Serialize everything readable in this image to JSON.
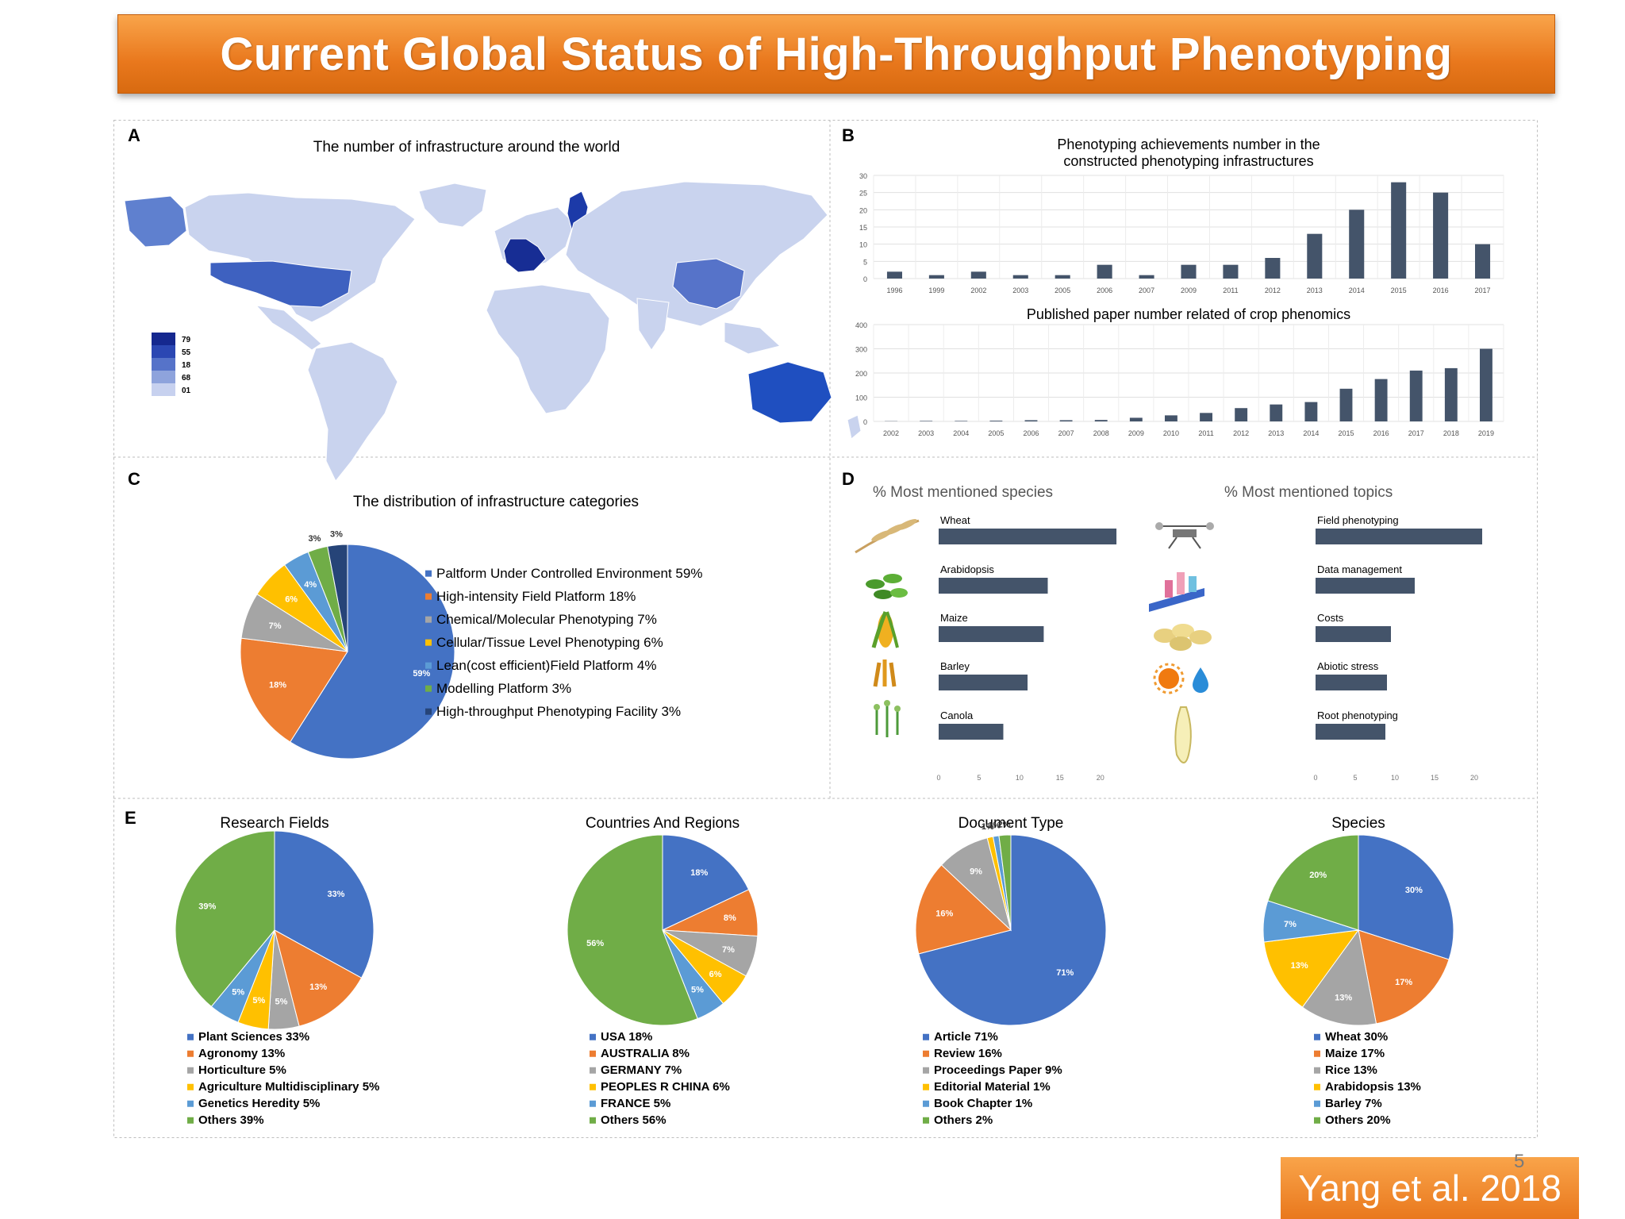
{
  "slide": {
    "title": "Current Global Status of High-Throughput Phenotyping",
    "citation": "Yang et al. 2018",
    "page_number": "5"
  },
  "panels": {
    "A": {
      "letter": "A",
      "title": "The number of infrastructure around the world",
      "legend_labels": [
        "79",
        "55",
        "18",
        "68",
        "01"
      ],
      "legend_colors": [
        "#15288f",
        "#2b47b3",
        "#5673c9",
        "#8ea3dc",
        "#c7d1ef"
      ]
    },
    "B": {
      "letter": "B"
    },
    "C": {
      "letter": "C"
    },
    "D": {
      "letter": "D",
      "species_title": "% Most mentioned species",
      "topics_title": "% Most mentioned topics",
      "species_icons": [
        "wheat-icon",
        "arabidopsis-icon",
        "maize-icon",
        "barley-icon",
        "canola-icon"
      ],
      "topic_icons": [
        "drone-icon",
        "data-management-icon",
        "coins-icon",
        "sun-water-icon",
        "root-icon"
      ]
    },
    "E": {
      "letter": "E"
    }
  },
  "colors": {
    "bar": "#44546a",
    "blue": "#4472c4",
    "orange": "#ed7d31",
    "gray": "#a5a5a5",
    "yellow": "#ffc000",
    "lightblue": "#5b9bd5",
    "green": "#70ad47",
    "navy": "#264478",
    "accent_orange": "#e9781d"
  },
  "chart_data": [
    {
      "id": "B1",
      "type": "bar",
      "title": "Phenotyping achievements number in the constructed phenotyping infrastructures",
      "categories": [
        "1996",
        "1999",
        "2002",
        "2003",
        "2005",
        "2006",
        "2007",
        "2009",
        "2011",
        "2012",
        "2013",
        "2014",
        "2015",
        "2016",
        "2017"
      ],
      "values": [
        2,
        1,
        2,
        1,
        1,
        4,
        1,
        4,
        4,
        6,
        13,
        20,
        28,
        25,
        10
      ],
      "yticks": [
        0,
        5,
        10,
        15,
        20,
        25,
        30
      ],
      "ylim": [
        0,
        30
      ],
      "grid": true
    },
    {
      "id": "B2",
      "type": "bar",
      "title": "Published paper number related of crop phenomics",
      "categories": [
        "2002",
        "2003",
        "2004",
        "2005",
        "2006",
        "2007",
        "2008",
        "2009",
        "2010",
        "2011",
        "2012",
        "2013",
        "2014",
        "2015",
        "2016",
        "2017",
        "2018",
        "2019"
      ],
      "values": [
        1,
        2,
        2,
        3,
        5,
        5,
        6,
        15,
        25,
        35,
        55,
        70,
        80,
        135,
        175,
        210,
        220,
        300
      ],
      "yticks": [
        0,
        100,
        200,
        300,
        400
      ],
      "ylim": [
        0,
        400
      ],
      "grid": true
    },
    {
      "id": "C",
      "type": "pie",
      "title": "The distribution of infrastructure categories",
      "slices": [
        {
          "label": "Paltform Under Controlled Environment 59%",
          "text": "59%",
          "value": 59,
          "color": "#4472c4"
        },
        {
          "label": "High-intensity Field Platform 18%",
          "text": "18%",
          "value": 18,
          "color": "#ed7d31"
        },
        {
          "label": "Chemical/Molecular Phenotyping 7%",
          "text": "7%",
          "value": 7,
          "color": "#a5a5a5"
        },
        {
          "label": "Cellular/Tissue Level Phenotyping 6%",
          "text": "6%",
          "value": 6,
          "color": "#ffc000"
        },
        {
          "label": "Lean(cost efficient)Field Platform 4%",
          "text": "4%",
          "value": 4,
          "color": "#5b9bd5"
        },
        {
          "label": "Modelling Platform 3%",
          "text": "3%",
          "value": 3,
          "color": "#70ad47"
        },
        {
          "label": "High-throughput Phenotyping Facility 3%",
          "text": "3%",
          "value": 3,
          "color": "#264478"
        }
      ]
    },
    {
      "id": "D1",
      "type": "bar",
      "orientation": "horizontal",
      "title": "% Most mentioned species",
      "categories": [
        "Wheat",
        "Arabidopsis",
        "Maize",
        "Barley",
        "Canola"
      ],
      "values": [
        22,
        13.5,
        13,
        11,
        8
      ],
      "xticks": [
        0,
        5,
        10,
        15,
        20
      ],
      "xlim": [
        0,
        27
      ]
    },
    {
      "id": "D2",
      "type": "bar",
      "orientation": "horizontal",
      "title": "% Most mentioned topics",
      "categories": [
        "Field phenotyping",
        "Data management",
        "Costs",
        "Abiotic stress",
        "Root phenotyping"
      ],
      "values": [
        21,
        12.5,
        9.5,
        9,
        8.8
      ],
      "xticks": [
        0,
        5,
        10,
        15,
        20
      ],
      "xlim": [
        0,
        26
      ]
    },
    {
      "id": "E1",
      "type": "pie",
      "title": "Research Fields",
      "slices": [
        {
          "label": "Plant Sciences 33%",
          "text": "33%",
          "value": 33,
          "color": "#4472c4"
        },
        {
          "label": "Agronomy 13%",
          "text": "13%",
          "value": 13,
          "color": "#ed7d31"
        },
        {
          "label": "Horticulture 5%",
          "text": "5%",
          "value": 5,
          "color": "#a5a5a5"
        },
        {
          "label": "Agriculture Multidisciplinary 5%",
          "text": "5%",
          "value": 5,
          "color": "#ffc000"
        },
        {
          "label": "Genetics Heredity 5%",
          "text": "5%",
          "value": 5,
          "color": "#5b9bd5"
        },
        {
          "label": "Others 39%",
          "text": "39%",
          "value": 39,
          "color": "#70ad47"
        }
      ]
    },
    {
      "id": "E2",
      "type": "pie",
      "title": "Countries And Regions",
      "slices": [
        {
          "label": "USA 18%",
          "text": "18%",
          "value": 18,
          "color": "#4472c4"
        },
        {
          "label": "AUSTRALIA 8%",
          "text": "8%",
          "value": 8,
          "color": "#ed7d31"
        },
        {
          "label": "GERMANY 7%",
          "text": "7%",
          "value": 7,
          "color": "#a5a5a5"
        },
        {
          "label": "PEOPLES R CHINA 6%",
          "text": "6%",
          "value": 6,
          "color": "#ffc000"
        },
        {
          "label": "FRANCE 5%",
          "text": "5%",
          "value": 5,
          "color": "#5b9bd5"
        },
        {
          "label": "Others 56%",
          "text": "56%",
          "value": 56,
          "color": "#70ad47"
        }
      ]
    },
    {
      "id": "E3",
      "type": "pie",
      "title": "Document Type",
      "slices": [
        {
          "label": "Article 71%",
          "text": "71%",
          "value": 71,
          "color": "#4472c4"
        },
        {
          "label": "Review 16%",
          "text": "16%",
          "value": 16,
          "color": "#ed7d31"
        },
        {
          "label": "Proceedings Paper 9%",
          "text": "9%",
          "value": 9,
          "color": "#a5a5a5"
        },
        {
          "label": "Editorial Material 1%",
          "text": "1%",
          "value": 1,
          "color": "#ffc000"
        },
        {
          "label": "Book Chapter 1%",
          "text": "1%",
          "value": 1,
          "color": "#5b9bd5"
        },
        {
          "label": "Others 2%",
          "text": "2%",
          "value": 2,
          "color": "#70ad47"
        }
      ]
    },
    {
      "id": "E4",
      "type": "pie",
      "title": "Species",
      "slices": [
        {
          "label": "Wheat 30%",
          "text": "30%",
          "value": 30,
          "color": "#4472c4"
        },
        {
          "label": "Maize 17%",
          "text": "17%",
          "value": 17,
          "color": "#ed7d31"
        },
        {
          "label": "Rice 13%",
          "text": "13%",
          "value": 13,
          "color": "#a5a5a5"
        },
        {
          "label": "Arabidopsis 13%",
          "text": "13%",
          "value": 13,
          "color": "#ffc000"
        },
        {
          "label": "Barley 7%",
          "text": "7%",
          "value": 7,
          "color": "#5b9bd5"
        },
        {
          "label": "Others 20%",
          "text": "20%",
          "value": 20,
          "color": "#70ad47"
        }
      ]
    }
  ]
}
